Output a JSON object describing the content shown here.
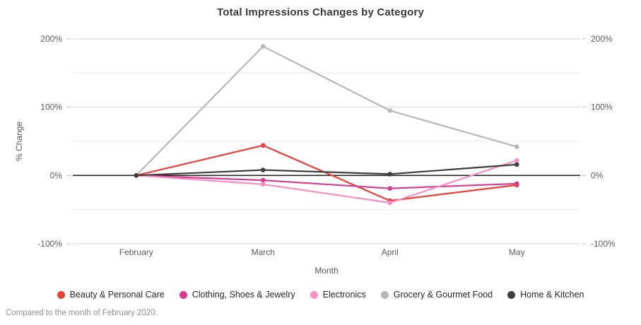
{
  "title": "Total Impressions Changes by Category",
  "footer_note": "Compared to the month of February 2020.",
  "chart_data": {
    "type": "line",
    "title": "Total Impressions Changes by Category",
    "xlabel": "Month",
    "ylabel": "% Change",
    "categories": [
      "February",
      "March",
      "April",
      "May"
    ],
    "series": [
      {
        "name": "Beauty & Personal Care",
        "color": "#ee3e36",
        "values": [
          0,
          44,
          -37,
          -14
        ]
      },
      {
        "name": "Clothing, Shoes & Jewelry",
        "color": "#d9398e",
        "values": [
          0,
          -7,
          -19,
          -12
        ]
      },
      {
        "name": "Electronics",
        "color": "#f78fc4",
        "values": [
          0,
          -13,
          -40,
          22
        ]
      },
      {
        "name": "Grocery & Gourmet Food",
        "color": "#b7b7b7",
        "values": [
          0,
          189,
          95,
          42
        ]
      },
      {
        "name": "Home & Kitchen",
        "color": "#3f3f3f",
        "values": [
          0,
          8,
          2,
          16
        ]
      }
    ],
    "ylim": [
      -100,
      200
    ],
    "y_gridlines": [
      200,
      150,
      100,
      50,
      0,
      -50,
      -100
    ],
    "y_ticks_labeled": [
      200,
      100,
      0,
      -100
    ],
    "y_tick_suffix": "%",
    "zero_baseline": true,
    "dual_axis_labels": true,
    "grid": true,
    "legend_position": "bottom"
  },
  "colors": {
    "grid_labeled": "#d4d4d4",
    "grid_unlabeled": "#eaeaea",
    "zero_line": "#262626",
    "tick": "#c2c2c2",
    "tick_label": "#5c5c5c",
    "axis_title": "#555555",
    "title": "#3a3a3a",
    "footer": "#8f8f8f"
  }
}
